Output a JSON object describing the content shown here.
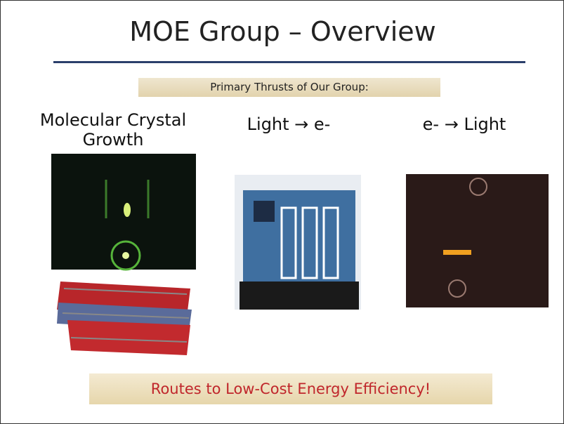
{
  "slide": {
    "title": "MOE Group – Overview",
    "banner": "Primary Thrusts of Our Group:",
    "columns": [
      {
        "heading": "Molecular Crystal Growth"
      },
      {
        "heading": "Light → e-"
      },
      {
        "heading": "e- → Light"
      }
    ],
    "footer": "Routes to Low-Cost Energy Efficiency!"
  }
}
